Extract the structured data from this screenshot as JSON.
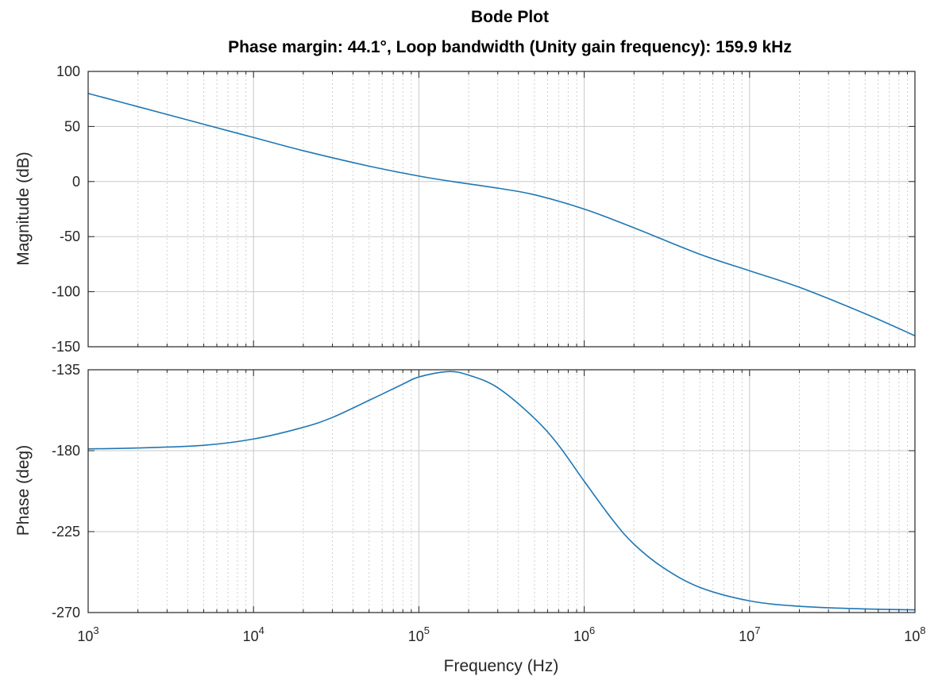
{
  "figure": {
    "title": "Bode Plot",
    "subtitle": "Phase margin: 44.1°, Loop bandwidth (Unity gain frequency): 159.9 kHz"
  },
  "chart_data": [
    {
      "type": "line",
      "name": "magnitude-plot",
      "title": "Bode Plot",
      "subtitle": "Phase margin: 44.1°, Loop bandwidth (Unity gain frequency): 159.9 kHz",
      "xlabel": "",
      "ylabel": "Magnitude (dB)",
      "xscale": "log",
      "xlim": [
        1000,
        100000000
      ],
      "ylim": [
        -150,
        100
      ],
      "yticks": [
        100,
        50,
        0,
        -50,
        -100,
        -150
      ],
      "grid": true,
      "x": [
        1000,
        2000,
        5000,
        10000,
        20000,
        50000,
        100000,
        159900,
        300000,
        500000,
        1000000,
        2000000,
        5000000,
        10000000,
        20000000,
        50000000,
        100000000
      ],
      "series": [
        {
          "color": "#1f77b4",
          "values": [
            80,
            68,
            52,
            40,
            28,
            14,
            5,
            0,
            -6,
            -12,
            -25,
            -42,
            -66,
            -81,
            -96,
            -120,
            -140
          ]
        }
      ]
    },
    {
      "type": "line",
      "name": "phase-plot",
      "xlabel": "Frequency  (Hz)",
      "ylabel": "Phase (deg)",
      "xscale": "log",
      "xlim": [
        1000,
        100000000
      ],
      "ylim": [
        -270,
        -135
      ],
      "xticks": [
        1000,
        10000,
        100000,
        1000000,
        10000000,
        100000000
      ],
      "xtick_labels": [
        {
          "base": "10",
          "exp": "3"
        },
        {
          "base": "10",
          "exp": "4"
        },
        {
          "base": "10",
          "exp": "5"
        },
        {
          "base": "10",
          "exp": "6"
        },
        {
          "base": "10",
          "exp": "7"
        },
        {
          "base": "10",
          "exp": "8"
        }
      ],
      "yticks": [
        -135,
        -180,
        -225,
        -270
      ],
      "grid": true,
      "x": [
        1000,
        2000,
        5000,
        10000,
        20000,
        30000,
        50000,
        80000,
        100000,
        150000,
        200000,
        300000,
        500000,
        700000,
        1000000,
        1500000,
        2000000,
        3000000,
        5000000,
        10000000,
        20000000,
        50000000,
        100000000
      ],
      "series": [
        {
          "color": "#1f77b4",
          "values": [
            -179,
            -178.5,
            -177,
            -173.5,
            -167,
            -161.5,
            -152,
            -143,
            -139,
            -136,
            -138,
            -145,
            -162,
            -177,
            -197,
            -219,
            -232,
            -245,
            -256,
            -263.5,
            -266.5,
            -268,
            -268.5
          ]
        }
      ]
    }
  ]
}
